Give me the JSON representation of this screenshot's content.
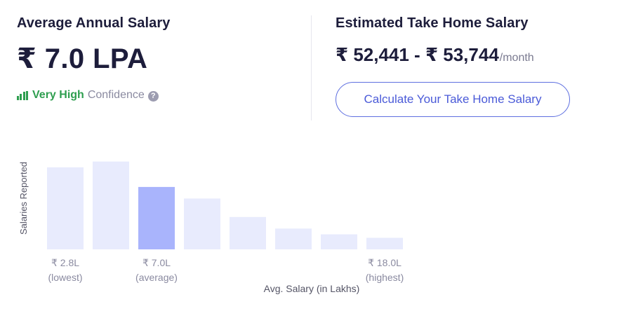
{
  "average": {
    "title": "Average Annual Salary",
    "value": "₹ 7.0 LPA",
    "confidence_level": "Very High",
    "confidence_label": "Confidence",
    "help_icon": "?",
    "colors": {
      "confidence": "#2e9e4f"
    }
  },
  "take_home": {
    "title": "Estimated Take Home Salary",
    "range": "₹ 52,441 - ₹ 53,744",
    "per": "/month",
    "button_label": "Calculate Your Take Home Salary",
    "colors": {
      "button": "#4a5ad8"
    }
  },
  "chart_data": {
    "type": "bar",
    "ylabel": "Salaries Reported",
    "xlabel": "Avg. Salary (in Lakhs)",
    "values": [
      0.71,
      0.76,
      0.54,
      0.44,
      0.28,
      0.18,
      0.13,
      0.1
    ],
    "highlight_index": 2,
    "tick_labels": [
      {
        "index": 0,
        "value": "₹ 2.8L",
        "sub": "(lowest)"
      },
      {
        "index": 2,
        "value": "₹ 7.0L",
        "sub": "(average)"
      },
      {
        "index": 7,
        "value": "₹ 18.0L",
        "sub": "(highest)"
      }
    ],
    "colors": {
      "bar": "#e8ebfd",
      "highlight": "#a9b4fc"
    }
  }
}
